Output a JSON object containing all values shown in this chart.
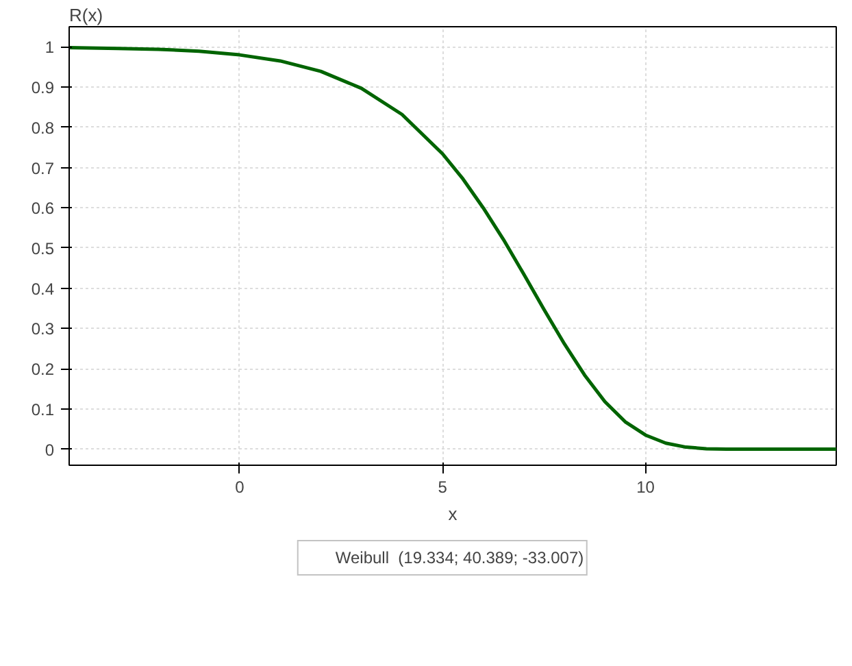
{
  "chart_data": {
    "type": "line",
    "xlabel": "x",
    "ylabel": "R(x)",
    "x": [
      -4.2,
      -3,
      -2,
      -1,
      0,
      1,
      2,
      3,
      4,
      5,
      5.5,
      6,
      6.5,
      7,
      7.5,
      8,
      8.5,
      9,
      9.5,
      10,
      10.5,
      11,
      11.5,
      12,
      13,
      14.7
    ],
    "series": [
      {
        "name": "Weibull  (19.334; 40.389; -33.007)",
        "color": "#006400",
        "values": [
          0.998,
          0.996,
          0.994,
          0.989,
          0.98,
          0.965,
          0.939,
          0.897,
          0.832,
          0.734,
          0.672,
          0.6,
          0.521,
          0.435,
          0.347,
          0.262,
          0.184,
          0.118,
          0.068,
          0.035,
          0.015,
          0.005,
          0.001,
          0,
          0,
          0
        ]
      }
    ],
    "xlim": [
      -4.2,
      14.7
    ],
    "ylim": [
      -0.04,
      1.05
    ],
    "xticks": [
      0,
      5,
      10
    ],
    "yticks": [
      0,
      0.1,
      0.2,
      0.3,
      0.4,
      0.5,
      0.6,
      0.7,
      0.8,
      0.9,
      1
    ],
    "grid": true,
    "legend": "bottom",
    "marker": "none",
    "line_style": "solid"
  }
}
